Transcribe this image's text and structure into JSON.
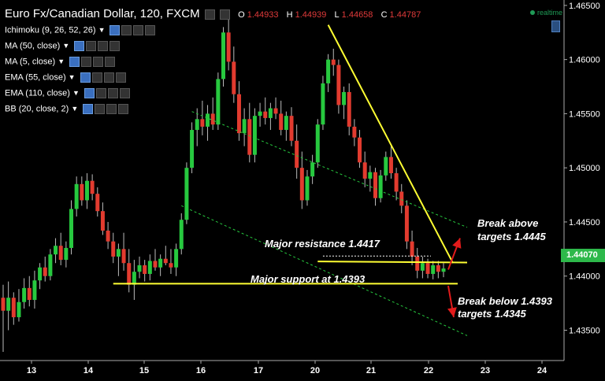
{
  "header": {
    "symbol": "Euro Fx/Canadian Dollar, 120, FXCM",
    "ohlc": [
      {
        "label": "O",
        "value": "1.44933"
      },
      {
        "label": "H",
        "value": "1.44939"
      },
      {
        "label": "L",
        "value": "1.44658"
      },
      {
        "label": "C",
        "value": "1.44787"
      }
    ]
  },
  "indicators": [
    {
      "label": "Ichimoku (9, 26, 52, 26)"
    },
    {
      "label": "MA (50, close)"
    },
    {
      "label": "MA (5, close)"
    },
    {
      "label": "EMA (55, close)"
    },
    {
      "label": "EMA (110, close)"
    },
    {
      "label": "BB (20, close, 2)"
    }
  ],
  "realtime_label": "realtime",
  "last_price": "1.44070",
  "colors": {
    "up": "#27c93f",
    "down": "#e23b2f",
    "trendline": "#ffff33",
    "channel": "#27c93f",
    "arrow": "#e21b1b",
    "last_price_bg": "#2db84a"
  },
  "annotations": {
    "resistance": "Major resistance 1.4417",
    "support": "Major support at 1.4393",
    "break_above_1": "Break above",
    "break_above_2": "targets 1.4445",
    "break_below_1": "Break below 1.4393",
    "break_below_2": "targets 1.4345"
  },
  "chart_data": {
    "type": "candlestick",
    "x_ticks": [
      "13",
      "14",
      "15",
      "16",
      "17",
      "20",
      "21",
      "22",
      "23",
      "24"
    ],
    "y_ticks": [
      "1.46500",
      "1.46000",
      "1.45500",
      "1.45000",
      "1.44500",
      "1.44000",
      "1.43500"
    ],
    "ylim": [
      1.4322,
      1.4655
    ],
    "grid": false,
    "levels": {
      "major_resistance": 1.4417,
      "major_support": 1.4393
    },
    "candles": [
      {
        "o": 1.438,
        "h": 1.4392,
        "l": 1.433,
        "c": 1.4368
      },
      {
        "o": 1.4368,
        "h": 1.4395,
        "l": 1.435,
        "c": 1.438
      },
      {
        "o": 1.438,
        "h": 1.4385,
        "l": 1.4355,
        "c": 1.4362
      },
      {
        "o": 1.4362,
        "h": 1.4388,
        "l": 1.4358,
        "c": 1.4376
      },
      {
        "o": 1.4376,
        "h": 1.4398,
        "l": 1.437,
        "c": 1.4389
      },
      {
        "o": 1.4389,
        "h": 1.44,
        "l": 1.4372,
        "c": 1.4378
      },
      {
        "o": 1.4378,
        "h": 1.4405,
        "l": 1.437,
        "c": 1.4396
      },
      {
        "o": 1.4396,
        "h": 1.4412,
        "l": 1.4388,
        "c": 1.4408
      },
      {
        "o": 1.4408,
        "h": 1.4418,
        "l": 1.4395,
        "c": 1.44
      },
      {
        "o": 1.44,
        "h": 1.4425,
        "l": 1.4396,
        "c": 1.442
      },
      {
        "o": 1.442,
        "h": 1.4435,
        "l": 1.4412,
        "c": 1.4428
      },
      {
        "o": 1.4428,
        "h": 1.444,
        "l": 1.441,
        "c": 1.4415
      },
      {
        "o": 1.4415,
        "h": 1.4432,
        "l": 1.4408,
        "c": 1.4426
      },
      {
        "o": 1.4426,
        "h": 1.447,
        "l": 1.442,
        "c": 1.4462
      },
      {
        "o": 1.4462,
        "h": 1.4492,
        "l": 1.4455,
        "c": 1.4485
      },
      {
        "o": 1.4485,
        "h": 1.4492,
        "l": 1.4465,
        "c": 1.447
      },
      {
        "o": 1.447,
        "h": 1.4495,
        "l": 1.4462,
        "c": 1.4488
      },
      {
        "o": 1.4488,
        "h": 1.4494,
        "l": 1.447,
        "c": 1.4476
      },
      {
        "o": 1.4476,
        "h": 1.4482,
        "l": 1.4455,
        "c": 1.446
      },
      {
        "o": 1.446,
        "h": 1.4468,
        "l": 1.4438,
        "c": 1.4442
      },
      {
        "o": 1.4442,
        "h": 1.445,
        "l": 1.4425,
        "c": 1.4432
      },
      {
        "o": 1.4432,
        "h": 1.444,
        "l": 1.4412,
        "c": 1.4418
      },
      {
        "o": 1.4418,
        "h": 1.443,
        "l": 1.44,
        "c": 1.4425
      },
      {
        "o": 1.4425,
        "h": 1.444,
        "l": 1.4405,
        "c": 1.4412
      },
      {
        "o": 1.4412,
        "h": 1.4425,
        "l": 1.4385,
        "c": 1.4392
      },
      {
        "o": 1.4392,
        "h": 1.4415,
        "l": 1.4378,
        "c": 1.4404
      },
      {
        "o": 1.4404,
        "h": 1.4418,
        "l": 1.4398,
        "c": 1.441
      },
      {
        "o": 1.441,
        "h": 1.4415,
        "l": 1.4395,
        "c": 1.4402
      },
      {
        "o": 1.4402,
        "h": 1.442,
        "l": 1.4396,
        "c": 1.4414
      },
      {
        "o": 1.4414,
        "h": 1.4425,
        "l": 1.4405,
        "c": 1.4408
      },
      {
        "o": 1.4408,
        "h": 1.442,
        "l": 1.44,
        "c": 1.4416
      },
      {
        "o": 1.4416,
        "h": 1.4428,
        "l": 1.441,
        "c": 1.4412
      },
      {
        "o": 1.4412,
        "h": 1.4425,
        "l": 1.4402,
        "c": 1.4408
      },
      {
        "o": 1.4408,
        "h": 1.443,
        "l": 1.44,
        "c": 1.4425
      },
      {
        "o": 1.4425,
        "h": 1.4458,
        "l": 1.442,
        "c": 1.4452
      },
      {
        "o": 1.4452,
        "h": 1.4505,
        "l": 1.4448,
        "c": 1.45
      },
      {
        "o": 1.45,
        "h": 1.4542,
        "l": 1.4495,
        "c": 1.4535
      },
      {
        "o": 1.4535,
        "h": 1.4555,
        "l": 1.452,
        "c": 1.4545
      },
      {
        "o": 1.4545,
        "h": 1.4562,
        "l": 1.453,
        "c": 1.4538
      },
      {
        "o": 1.4538,
        "h": 1.4558,
        "l": 1.4525,
        "c": 1.455
      },
      {
        "o": 1.455,
        "h": 1.4565,
        "l": 1.4535,
        "c": 1.454
      },
      {
        "o": 1.454,
        "h": 1.4588,
        "l": 1.4535,
        "c": 1.4582
      },
      {
        "o": 1.4582,
        "h": 1.463,
        "l": 1.4575,
        "c": 1.4625
      },
      {
        "o": 1.4625,
        "h": 1.4638,
        "l": 1.459,
        "c": 1.4598
      },
      {
        "o": 1.4598,
        "h": 1.4612,
        "l": 1.456,
        "c": 1.4568
      },
      {
        "o": 1.4568,
        "h": 1.458,
        "l": 1.4525,
        "c": 1.4532
      },
      {
        "o": 1.4532,
        "h": 1.4555,
        "l": 1.452,
        "c": 1.4545
      },
      {
        "o": 1.4545,
        "h": 1.456,
        "l": 1.4505,
        "c": 1.4512
      },
      {
        "o": 1.4512,
        "h": 1.4555,
        "l": 1.4505,
        "c": 1.4548
      },
      {
        "o": 1.4548,
        "h": 1.456,
        "l": 1.4538,
        "c": 1.4552
      },
      {
        "o": 1.4552,
        "h": 1.4565,
        "l": 1.454,
        "c": 1.4546
      },
      {
        "o": 1.4546,
        "h": 1.456,
        "l": 1.4535,
        "c": 1.4555
      },
      {
        "o": 1.4555,
        "h": 1.4565,
        "l": 1.4545,
        "c": 1.455
      },
      {
        "o": 1.455,
        "h": 1.4562,
        "l": 1.453,
        "c": 1.4535
      },
      {
        "o": 1.4535,
        "h": 1.4552,
        "l": 1.4525,
        "c": 1.4548
      },
      {
        "o": 1.4548,
        "h": 1.4556,
        "l": 1.452,
        "c": 1.4525
      },
      {
        "o": 1.4525,
        "h": 1.454,
        "l": 1.449,
        "c": 1.45
      },
      {
        "o": 1.45,
        "h": 1.4515,
        "l": 1.4462,
        "c": 1.447
      },
      {
        "o": 1.447,
        "h": 1.4498,
        "l": 1.4465,
        "c": 1.4492
      },
      {
        "o": 1.4492,
        "h": 1.4512,
        "l": 1.4485,
        "c": 1.4505
      },
      {
        "o": 1.4505,
        "h": 1.4545,
        "l": 1.45,
        "c": 1.454
      },
      {
        "o": 1.454,
        "h": 1.4585,
        "l": 1.4535,
        "c": 1.4578
      },
      {
        "o": 1.4578,
        "h": 1.4605,
        "l": 1.457,
        "c": 1.46
      },
      {
        "o": 1.46,
        "h": 1.461,
        "l": 1.4585,
        "c": 1.4595
      },
      {
        "o": 1.4595,
        "h": 1.46,
        "l": 1.455,
        "c": 1.4558
      },
      {
        "o": 1.4558,
        "h": 1.4575,
        "l": 1.4545,
        "c": 1.457
      },
      {
        "o": 1.457,
        "h": 1.4578,
        "l": 1.453,
        "c": 1.4538
      },
      {
        "o": 1.4538,
        "h": 1.4545,
        "l": 1.452,
        "c": 1.4528
      },
      {
        "o": 1.4528,
        "h": 1.4535,
        "l": 1.45,
        "c": 1.4505
      },
      {
        "o": 1.4505,
        "h": 1.4515,
        "l": 1.4482,
        "c": 1.449
      },
      {
        "o": 1.449,
        "h": 1.4502,
        "l": 1.4478,
        "c": 1.4496
      },
      {
        "o": 1.4496,
        "h": 1.45,
        "l": 1.4465,
        "c": 1.4472
      },
      {
        "o": 1.4472,
        "h": 1.4498,
        "l": 1.4468,
        "c": 1.4493
      },
      {
        "o": 1.4493,
        "h": 1.4515,
        "l": 1.4488,
        "c": 1.451
      },
      {
        "o": 1.451,
        "h": 1.452,
        "l": 1.449,
        "c": 1.4495
      },
      {
        "o": 1.4495,
        "h": 1.45,
        "l": 1.447,
        "c": 1.4478
      },
      {
        "o": 1.4478,
        "h": 1.4485,
        "l": 1.4458,
        "c": 1.4465
      },
      {
        "o": 1.4465,
        "h": 1.447,
        "l": 1.4425,
        "c": 1.4432
      },
      {
        "o": 1.4432,
        "h": 1.4442,
        "l": 1.441,
        "c": 1.4418
      },
      {
        "o": 1.4418,
        "h": 1.4426,
        "l": 1.4398,
        "c": 1.4405
      },
      {
        "o": 1.4405,
        "h": 1.4418,
        "l": 1.4398,
        "c": 1.4412
      },
      {
        "o": 1.4412,
        "h": 1.4416,
        "l": 1.4398,
        "c": 1.4402
      },
      {
        "o": 1.4402,
        "h": 1.4414,
        "l": 1.4397,
        "c": 1.441
      },
      {
        "o": 1.441,
        "h": 1.4414,
        "l": 1.4398,
        "c": 1.4404
      },
      {
        "o": 1.4404,
        "h": 1.4412,
        "l": 1.4399,
        "c": 1.4407
      }
    ]
  }
}
